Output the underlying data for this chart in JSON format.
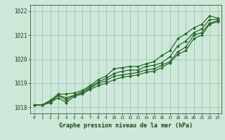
{
  "title": "Graphe pression niveau de la mer (hPa)",
  "x_labels": [
    "0",
    "1",
    "2",
    "3",
    "4",
    "5",
    "6",
    "7",
    "8",
    "9",
    "10",
    "11",
    "12",
    "13",
    "14",
    "15",
    "16",
    "17",
    "18",
    "19",
    "20",
    "21",
    "22",
    "23"
  ],
  "x_values": [
    0,
    1,
    2,
    3,
    4,
    5,
    6,
    7,
    8,
    9,
    10,
    11,
    12,
    13,
    14,
    15,
    16,
    17,
    18,
    19,
    20,
    21,
    22,
    23
  ],
  "series": [
    [
      1018.1,
      1018.1,
      1018.2,
      1018.5,
      1018.3,
      1018.5,
      1018.6,
      1018.8,
      1019.0,
      1019.1,
      1019.3,
      1019.35,
      1019.4,
      1019.45,
      1019.55,
      1019.6,
      1019.75,
      1019.9,
      1020.3,
      1020.5,
      1021.0,
      1021.1,
      1021.5,
      1021.6
    ],
    [
      1018.1,
      1018.1,
      1018.2,
      1018.4,
      1018.2,
      1018.45,
      1018.55,
      1018.75,
      1018.9,
      1019.0,
      1019.15,
      1019.25,
      1019.3,
      1019.35,
      1019.45,
      1019.5,
      1019.65,
      1019.85,
      1020.2,
      1020.35,
      1020.85,
      1021.0,
      1021.45,
      1021.55
    ],
    [
      1018.1,
      1018.1,
      1018.25,
      1018.5,
      1018.4,
      1018.5,
      1018.65,
      1018.85,
      1019.05,
      1019.2,
      1019.4,
      1019.5,
      1019.55,
      1019.55,
      1019.7,
      1019.75,
      1019.85,
      1020.1,
      1020.55,
      1020.75,
      1021.1,
      1021.25,
      1021.65,
      1021.65
    ],
    [
      1018.1,
      1018.1,
      1018.3,
      1018.55,
      1018.55,
      1018.6,
      1018.7,
      1018.9,
      1019.15,
      1019.3,
      1019.6,
      1019.65,
      1019.7,
      1019.7,
      1019.8,
      1019.9,
      1020.15,
      1020.35,
      1020.85,
      1021.05,
      1021.3,
      1021.45,
      1021.8,
      1021.7
    ]
  ],
  "line_color": "#2d6a2d",
  "marker_color": "#2d6a2d",
  "bg_color": "#cce8d8",
  "grid_color": "#9abfaa",
  "text_color": "#1a4a1a",
  "ylim": [
    1017.75,
    1022.25
  ],
  "yticks": [
    1018,
    1019,
    1020,
    1021,
    1022
  ],
  "fig_bg": "#cce8d8"
}
